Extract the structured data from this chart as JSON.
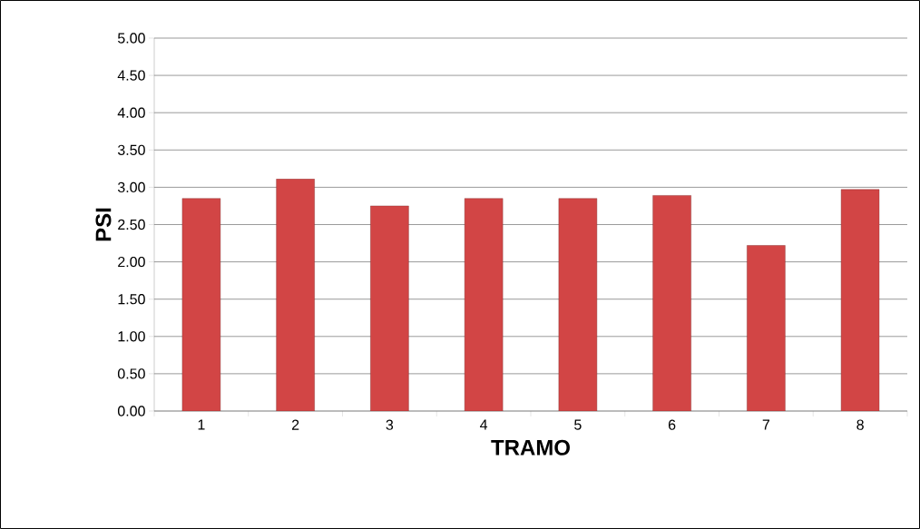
{
  "chart_data": {
    "type": "bar",
    "xlabel": "TRAMO",
    "ylabel": "PSI",
    "categories": [
      "1",
      "2",
      "3",
      "4",
      "5",
      "6",
      "7",
      "8"
    ],
    "values": [
      2.85,
      3.11,
      2.75,
      2.85,
      2.85,
      2.89,
      2.22,
      2.97
    ],
    "color": "#d24545",
    "ylim": [
      0,
      5
    ],
    "yticks": [
      {
        "value": 0,
        "label": "0.00"
      },
      {
        "value": 0.5,
        "label": "0.50"
      },
      {
        "value": 1,
        "label": "1.00"
      },
      {
        "value": 1.5,
        "label": "1.50"
      },
      {
        "value": 2,
        "label": "2.00"
      },
      {
        "value": 2.5,
        "label": "2.50"
      },
      {
        "value": 3,
        "label": "3.00"
      },
      {
        "value": 3.5,
        "label": "3.50"
      },
      {
        "value": 4,
        "label": "4.00"
      },
      {
        "value": 4.5,
        "label": "4.50"
      },
      {
        "value": 5,
        "label": "5.00"
      }
    ],
    "grid": "y"
  }
}
